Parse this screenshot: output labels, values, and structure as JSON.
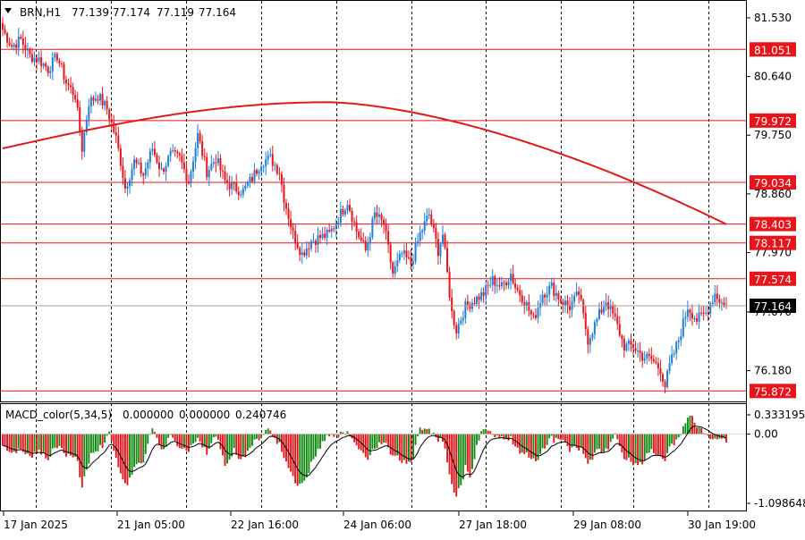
{
  "header": {
    "symbol": "BRN,H1",
    "open": "77.139",
    "high": "77.174",
    "low": "77.119",
    "close": "77.164"
  },
  "macd": {
    "name": "MACD_color(5,34,5)",
    "values": [
      "0.000000",
      "0.000000",
      "0.240746"
    ],
    "axis_labels": [
      {
        "value": 0.333195,
        "text": "0.333195"
      },
      {
        "value": 0.0,
        "text": "0.00"
      },
      {
        "value": -1.098648,
        "text": "-1.098648"
      }
    ]
  },
  "colors": {
    "bull": "#1e7fd8",
    "bear": "#e8141b",
    "ma": "#e01a1a",
    "level_line": "#e8141b",
    "level_box": "#e8141b",
    "price_box": "#000000",
    "hist_pos_up": "#138a13",
    "hist_neg_down": "#e8141b",
    "signal": "#000000"
  },
  "chart_data": {
    "type": "candlestick",
    "symbol": "BRN",
    "timeframe": "H1",
    "ylim": [
      75.7,
      81.8
    ],
    "y_ticks": [
      {
        "value": 81.53,
        "text": "81.530"
      },
      {
        "value": 80.64,
        "text": "80.640"
      },
      {
        "value": 79.75,
        "text": "79.750"
      },
      {
        "value": 78.86,
        "text": "78.860"
      },
      {
        "value": 77.97,
        "text": "77.970"
      },
      {
        "value": 77.07,
        "text": "77.070"
      },
      {
        "value": 76.18,
        "text": "76.180"
      }
    ],
    "levels": [
      {
        "value": 81.051,
        "text": "81.051"
      },
      {
        "value": 79.972,
        "text": "79.972"
      },
      {
        "value": 79.034,
        "text": "79.034"
      },
      {
        "value": 78.403,
        "text": "78.403"
      },
      {
        "value": 78.117,
        "text": "78.117"
      },
      {
        "value": 77.574,
        "text": "77.574"
      },
      {
        "value": 75.872,
        "text": "75.872"
      }
    ],
    "current_price": {
      "value": 77.164,
      "text": "77.164"
    },
    "x_labels": [
      "17 Jan 2025",
      "21 Jan 05:00",
      "22 Jan 16:00",
      "24 Jan 06:00",
      "27 Jan 18:00",
      "29 Jan 08:00",
      "30 Jan 19:00"
    ],
    "grid": "vertical dashed",
    "close_path": [
      [
        0,
        81.35
      ],
      [
        4,
        81.1
      ],
      [
        8,
        81.2
      ],
      [
        12,
        80.95
      ],
      [
        16,
        80.9
      ],
      [
        20,
        80.75
      ],
      [
        24,
        80.95
      ],
      [
        28,
        80.55
      ],
      [
        32,
        80.35
      ],
      [
        35,
        79.55
      ],
      [
        38,
        80.25
      ],
      [
        42,
        80.35
      ],
      [
        46,
        80.15
      ],
      [
        50,
        79.7
      ],
      [
        52,
        79.35
      ],
      [
        54,
        78.95
      ],
      [
        58,
        79.35
      ],
      [
        62,
        79.15
      ],
      [
        66,
        79.55
      ],
      [
        70,
        79.2
      ],
      [
        74,
        79.45
      ],
      [
        78,
        79.4
      ],
      [
        82,
        79.05
      ],
      [
        86,
        79.75
      ],
      [
        90,
        79.2
      ],
      [
        94,
        79.4
      ],
      [
        98,
        79.05
      ],
      [
        102,
        78.95
      ],
      [
        106,
        78.9
      ],
      [
        110,
        79.1
      ],
      [
        114,
        79.35
      ],
      [
        118,
        79.4
      ],
      [
        122,
        79.2
      ],
      [
        124,
        78.8
      ],
      [
        128,
        78.25
      ],
      [
        132,
        77.95
      ],
      [
        136,
        78.15
      ],
      [
        140,
        78.2
      ],
      [
        144,
        78.25
      ],
      [
        148,
        78.5
      ],
      [
        152,
        78.75
      ],
      [
        156,
        78.3
      ],
      [
        160,
        78.0
      ],
      [
        164,
        78.55
      ],
      [
        168,
        78.4
      ],
      [
        172,
        77.65
      ],
      [
        176,
        77.95
      ],
      [
        180,
        77.8
      ],
      [
        184,
        78.25
      ],
      [
        188,
        78.55
      ],
      [
        192,
        78.0
      ],
      [
        194,
        78.25
      ],
      [
        196,
        77.65
      ],
      [
        198,
        77.05
      ],
      [
        200,
        76.8
      ],
      [
        204,
        77.15
      ],
      [
        208,
        77.25
      ],
      [
        212,
        77.35
      ],
      [
        216,
        77.55
      ],
      [
        220,
        77.45
      ],
      [
        224,
        77.65
      ],
      [
        226,
        77.45
      ],
      [
        230,
        77.25
      ],
      [
        234,
        76.95
      ],
      [
        238,
        77.35
      ],
      [
        242,
        77.45
      ],
      [
        246,
        77.25
      ],
      [
        250,
        77.15
      ],
      [
        254,
        77.35
      ],
      [
        258,
        76.65
      ],
      [
        262,
        76.95
      ],
      [
        266,
        77.25
      ],
      [
        270,
        76.95
      ],
      [
        274,
        76.55
      ],
      [
        278,
        76.55
      ],
      [
        282,
        76.4
      ],
      [
        286,
        76.35
      ],
      [
        290,
        76.2
      ],
      [
        292,
        75.95
      ],
      [
        294,
        76.25
      ],
      [
        298,
        76.65
      ],
      [
        302,
        77.15
      ],
      [
        306,
        76.95
      ],
      [
        310,
        77.05
      ],
      [
        314,
        77.35
      ],
      [
        318,
        77.16
      ]
    ]
  }
}
